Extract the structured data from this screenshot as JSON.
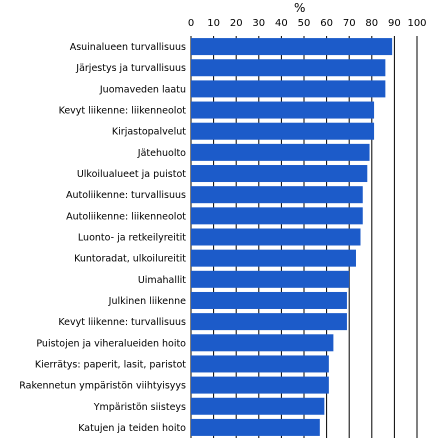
{
  "chart_data": {
    "type": "bar",
    "orientation": "horizontal",
    "unit_label": "%",
    "title": "",
    "xlabel": "",
    "ylabel": "",
    "xlim": [
      0,
      100
    ],
    "ticks": [
      0,
      10,
      20,
      30,
      40,
      50,
      60,
      70,
      80,
      90,
      100
    ],
    "grid": true,
    "bar_color": "#1c5bc9",
    "categories": [
      "Asuinalueen turvallisuus",
      "Järjestys ja turvallisuus",
      "Juomaveden laatu",
      "Kevyt liikenne: liikenneolot",
      "Kirjastopalvelut",
      "Jätehuolto",
      "Ulkoilualueet ja puistot",
      "Autoliikenne: turvallisuus",
      "Autoliikenne: liikenneolot",
      "Luonto- ja retkeilyreitit",
      "Kuntoradat, ulkoilureitit",
      "Uimahallit",
      "Julkinen liikenne",
      "Kevyt liikenne: turvallisuus",
      "Puistojen ja viheralueiden hoito",
      "Kierrätys: paperit, lasit, paristot",
      "Rakennetun ympäristön viihtyisyys",
      "Ympäristön siisteys",
      "Katujen ja teiden hoito"
    ],
    "values": [
      89,
      86,
      86,
      81,
      81,
      79,
      78,
      76,
      76,
      75,
      73,
      70,
      69,
      69,
      63,
      61,
      61,
      59,
      57
    ]
  }
}
